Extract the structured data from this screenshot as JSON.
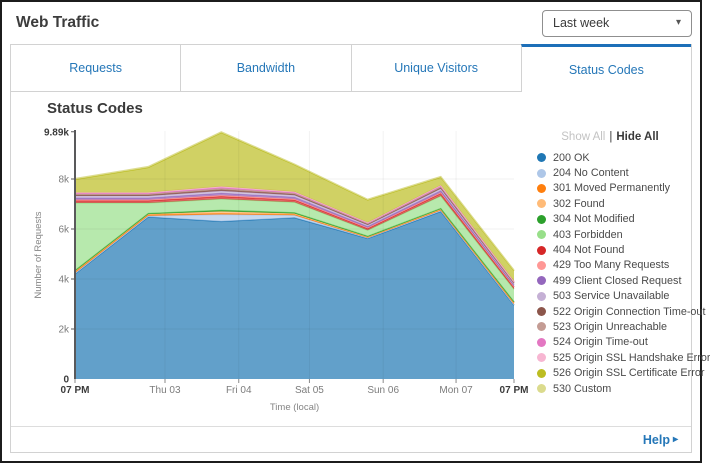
{
  "header": {
    "title": "Web Traffic",
    "time_range": {
      "value": "Last week",
      "caret_icon": "▾"
    }
  },
  "tabs": [
    {
      "label": "Requests",
      "active": false
    },
    {
      "label": "Bandwidth",
      "active": false
    },
    {
      "label": "Unique Visitors",
      "active": false
    },
    {
      "label": "Status Codes",
      "active": true
    }
  ],
  "legend": {
    "show_all": "Show All",
    "separator": "|",
    "hide_all": "Hide All",
    "position": "right"
  },
  "footer": {
    "help_label": "Help",
    "help_arrow": "▸"
  },
  "chart_data": {
    "type": "area",
    "stacked": true,
    "title": "Status Codes",
    "xlabel": "Time (local)",
    "ylabel": "Number of Requests",
    "ylim": [
      0,
      9890
    ],
    "grid": true,
    "x_points": 7,
    "x_ticks": [
      {
        "label": "07 PM",
        "pos": 0.0,
        "strong": true
      },
      {
        "label": "Thu 03",
        "pos": 0.205,
        "strong": false
      },
      {
        "label": "Fri 04",
        "pos": 0.373,
        "strong": false
      },
      {
        "label": "Sat 05",
        "pos": 0.534,
        "strong": false
      },
      {
        "label": "Sun 06",
        "pos": 0.702,
        "strong": false
      },
      {
        "label": "Mon 07",
        "pos": 0.868,
        "strong": false
      },
      {
        "label": "07 PM",
        "pos": 1.0,
        "strong": true
      }
    ],
    "y_ticks": [
      {
        "label": "0",
        "value": 0,
        "strong": true
      },
      {
        "label": "2k",
        "value": 2000,
        "strong": false
      },
      {
        "label": "4k",
        "value": 4000,
        "strong": false
      },
      {
        "label": "6k",
        "value": 6000,
        "strong": false
      },
      {
        "label": "8k",
        "value": 8000,
        "strong": false
      },
      {
        "label": "9.89k",
        "value": 9890,
        "strong": true
      }
    ],
    "series": [
      {
        "name": "200 OK",
        "color": "#1f77b4",
        "values": [
          4200,
          6480,
          6300,
          6450,
          5620,
          6700,
          2950
        ]
      },
      {
        "name": "204 No Content",
        "color": "#aec7e8",
        "values": [
          30,
          40,
          280,
          100,
          30,
          40,
          30
        ]
      },
      {
        "name": "301 Moved Permanently",
        "color": "#ff7f0e",
        "values": [
          60,
          50,
          40,
          30,
          20,
          30,
          60
        ]
      },
      {
        "name": "302 Found",
        "color": "#ffbb78",
        "values": [
          30,
          30,
          80,
          40,
          20,
          30,
          30
        ]
      },
      {
        "name": "304 Not Modified",
        "color": "#2ca02c",
        "values": [
          20,
          20,
          50,
          30,
          20,
          20,
          20
        ]
      },
      {
        "name": "403 Forbidden",
        "color": "#98df8a",
        "values": [
          2700,
          420,
          450,
          420,
          240,
          500,
          500
        ]
      },
      {
        "name": "404 Not Found",
        "color": "#d62728",
        "values": [
          90,
          90,
          100,
          90,
          70,
          100,
          80
        ]
      },
      {
        "name": "429 Too Many Requests",
        "color": "#ff9896",
        "values": [
          40,
          40,
          50,
          40,
          30,
          40,
          30
        ]
      },
      {
        "name": "499 Client Closed Request",
        "color": "#9467bd",
        "values": [
          70,
          70,
          80,
          70,
          50,
          70,
          50
        ]
      },
      {
        "name": "503 Service Unavailable",
        "color": "#c5b0d5",
        "values": [
          80,
          80,
          90,
          80,
          60,
          80,
          60
        ]
      },
      {
        "name": "522 Origin Connection Time-out",
        "color": "#8c564b",
        "values": [
          40,
          40,
          50,
          40,
          30,
          40,
          30
        ]
      },
      {
        "name": "523 Origin Unreachable",
        "color": "#c49c94",
        "values": [
          40,
          40,
          50,
          40,
          30,
          40,
          30
        ]
      },
      {
        "name": "524 Origin Time-out",
        "color": "#e377c2",
        "values": [
          30,
          30,
          40,
          30,
          20,
          30,
          20
        ]
      },
      {
        "name": "525 Origin SSL Handshake Error",
        "color": "#f7b6d2",
        "values": [
          30,
          30,
          40,
          30,
          20,
          30,
          20
        ]
      },
      {
        "name": "526 Origin SSL Certificate Error",
        "color": "#bcbd22",
        "values": [
          520,
          1000,
          2150,
          1080,
          900,
          320,
          420
        ]
      },
      {
        "name": "530 Custom",
        "color": "#dbdb8d",
        "values": [
          40,
          40,
          40,
          30,
          30,
          30,
          30
        ]
      }
    ]
  }
}
